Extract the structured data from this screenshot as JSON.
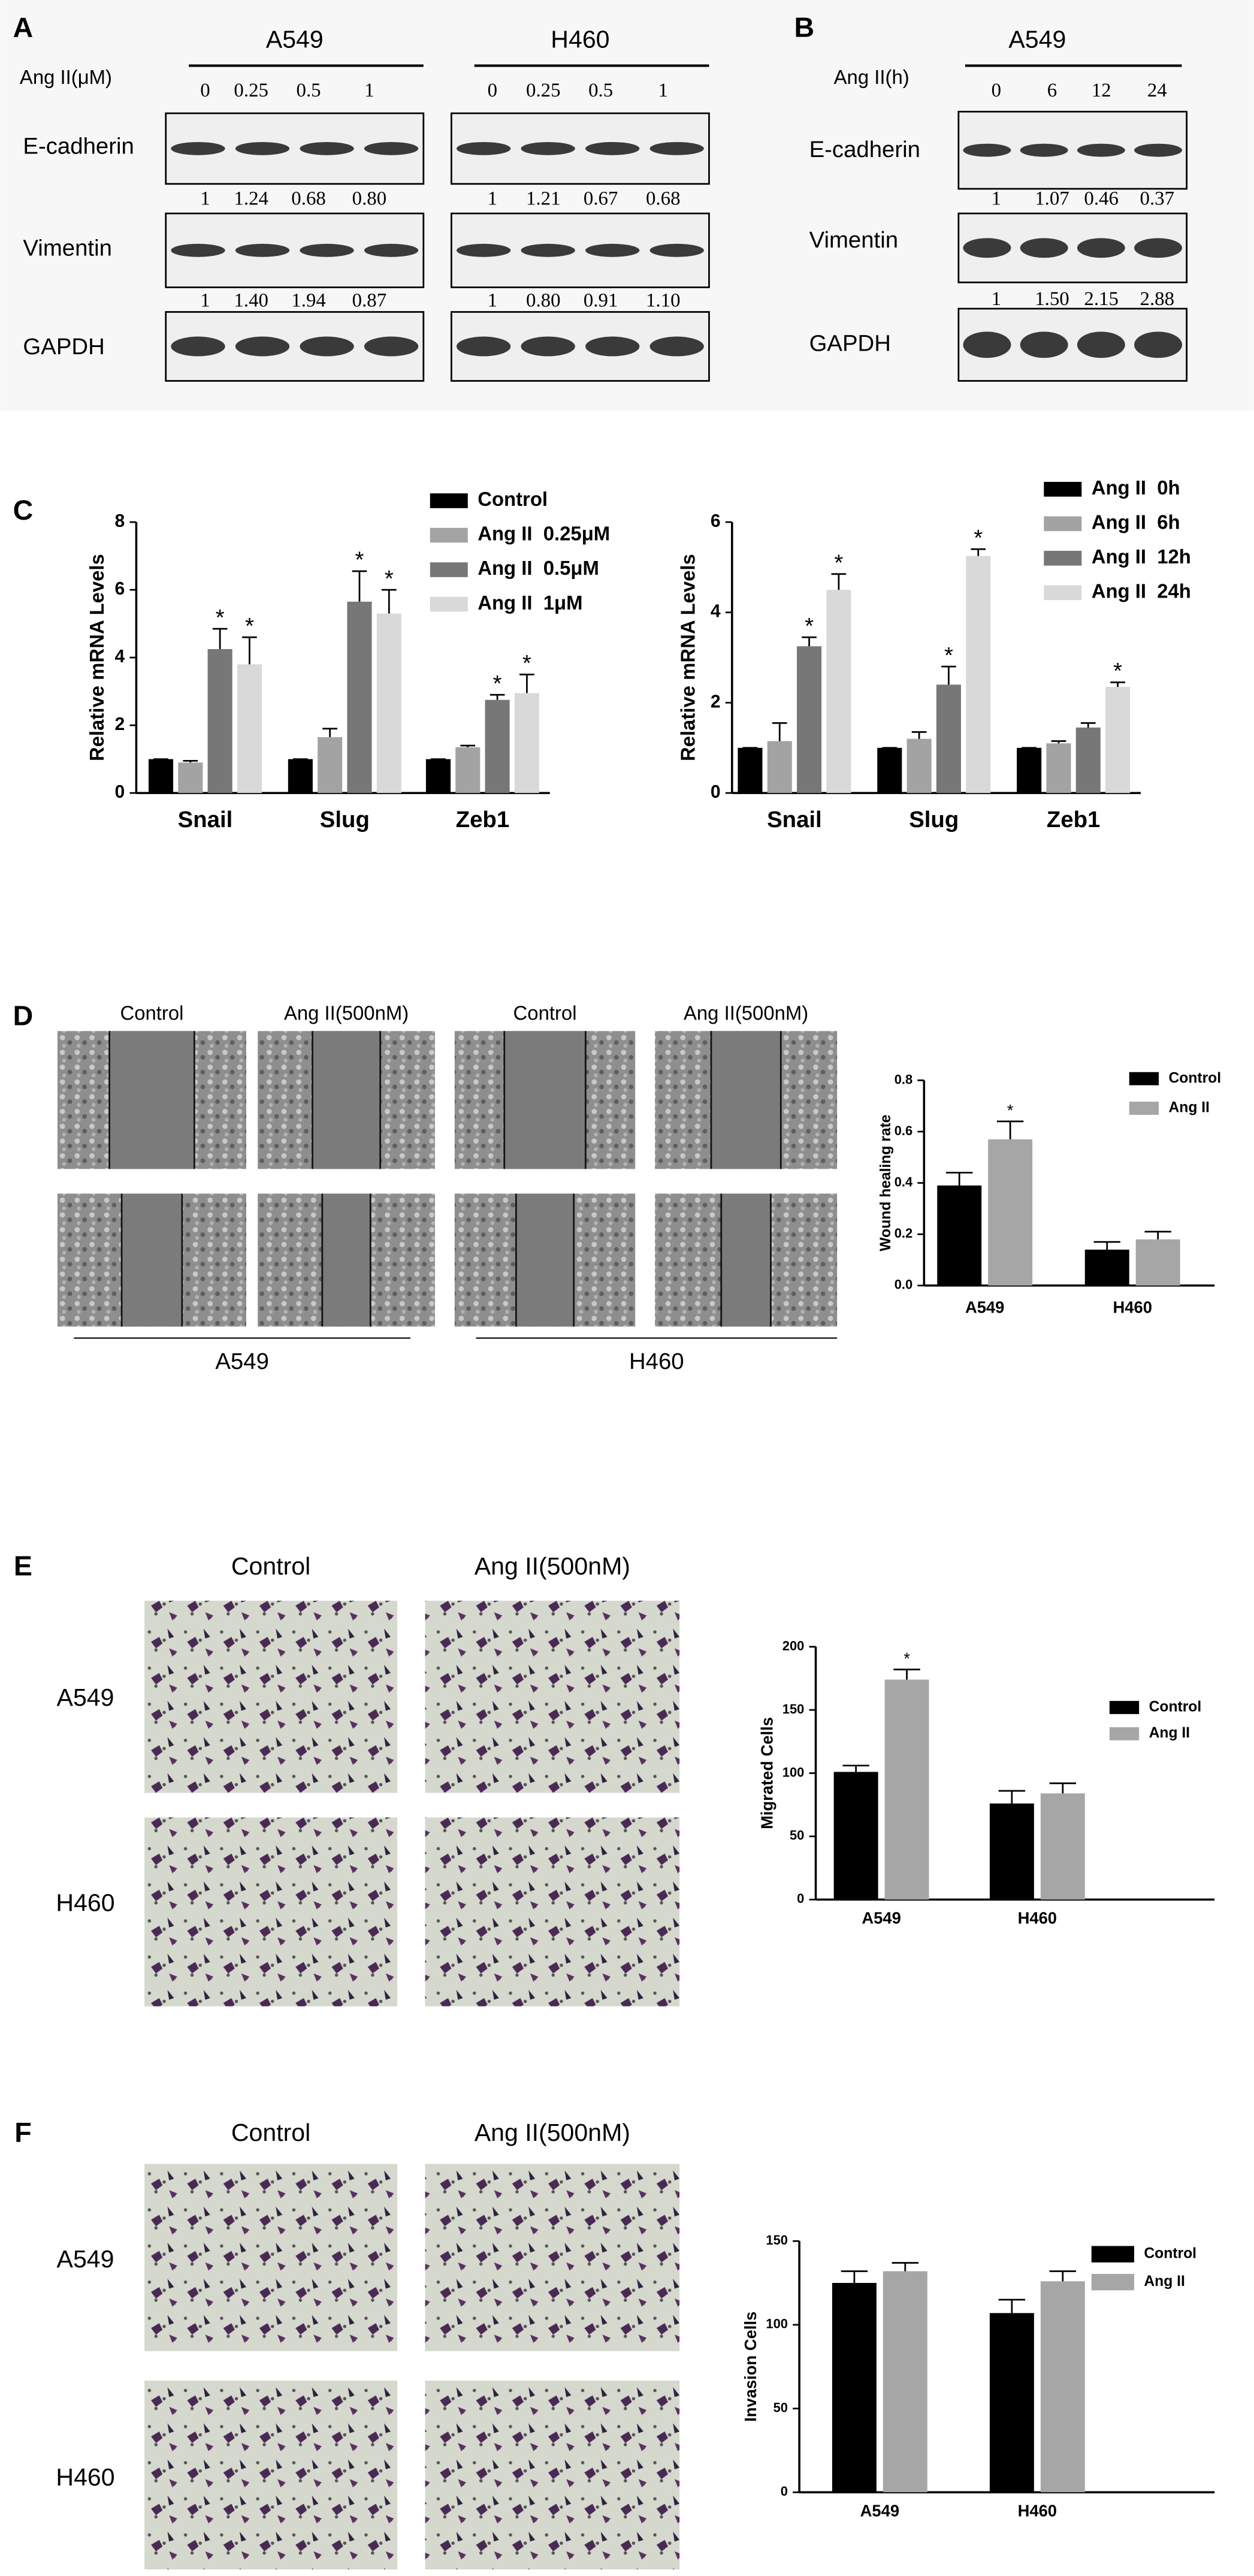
{
  "panels": {
    "A": {
      "label": "A",
      "dose_label": "Ang II(μM)",
      "rows": [
        "E-cadherin",
        "Vimentin",
        "GAPDH"
      ],
      "groups": [
        {
          "name": "A549",
          "lanes": [
            "0",
            "0.25",
            "0.5",
            "1"
          ],
          "e_cadherin": [
            "1",
            "1.24",
            "0.68",
            "0.80"
          ],
          "vimentin": [
            "1",
            "1.40",
            "1.94",
            "0.87"
          ]
        },
        {
          "name": "H460",
          "lanes": [
            "0",
            "0.25",
            "0.5",
            "1"
          ],
          "e_cadherin": [
            "1",
            "1.21",
            "0.67",
            "0.68"
          ],
          "vimentin": [
            "1",
            "0.80",
            "0.91",
            "1.10"
          ]
        }
      ]
    },
    "B": {
      "label": "B",
      "dose_label": "Ang II(h)",
      "rows": [
        "E-cadherin",
        "Vimentin",
        "GAPDH"
      ],
      "groups": [
        {
          "name": "A549",
          "lanes": [
            "0",
            "6",
            "12",
            "24"
          ],
          "e_cadherin": [
            "1",
            "1.07",
            "0.46",
            "0.37"
          ],
          "vimentin": [
            "1",
            "1.50",
            "2.15",
            "2.88"
          ]
        }
      ]
    },
    "C": {
      "label": "C"
    },
    "D": {
      "label": "D",
      "columns": [
        "Control",
        "Ang II(500nM)",
        "Control",
        "Ang II(500nM)"
      ],
      "groups": [
        "A549",
        "H460"
      ]
    },
    "E": {
      "label": "E",
      "columns": [
        "Control",
        "Ang II(500nM)"
      ],
      "rows": [
        "A549",
        "H460"
      ]
    },
    "F": {
      "label": "F",
      "columns": [
        "Control",
        "Ang II(500nM)"
      ],
      "rows": [
        "A549",
        "H460"
      ]
    }
  },
  "chart_data": [
    {
      "type": "bar",
      "y_label": "Relative mRNA Levels",
      "categories": [
        "Snail",
        "Slug",
        "Zeb1"
      ],
      "ylim": [
        0,
        8
      ],
      "yticks": [
        0,
        2,
        4,
        6,
        8
      ],
      "series": [
        {
          "name": "Control",
          "color": "#000000",
          "values": [
            1,
            1,
            1
          ],
          "errors": [
            0,
            0,
            0
          ],
          "significance": [
            null,
            null,
            null
          ]
        },
        {
          "name": "Ang II  0.25μM",
          "color": "#a3a3a3",
          "values": [
            0.9,
            1.65,
            1.35
          ],
          "errors": [
            0.05,
            0.25,
            0.05
          ],
          "significance": [
            null,
            null,
            null
          ]
        },
        {
          "name": "Ang II  0.5μM",
          "color": "#777777",
          "values": [
            4.25,
            5.65,
            2.75
          ],
          "errors": [
            0.6,
            0.9,
            0.15
          ],
          "significance": [
            "*",
            "*",
            "*"
          ]
        },
        {
          "name": "Ang II  1μM",
          "color": "#d9d9d9",
          "values": [
            3.8,
            5.3,
            2.95
          ],
          "errors": [
            0.8,
            0.7,
            0.55
          ],
          "significance": [
            "*",
            "*",
            "*"
          ]
        }
      ]
    },
    {
      "type": "bar",
      "y_label": "Relative mRNA Levels",
      "categories": [
        "Snail",
        "Slug",
        "Zeb1"
      ],
      "ylim": [
        0,
        6
      ],
      "yticks": [
        0,
        2,
        4,
        6
      ],
      "series": [
        {
          "name": "Ang II  0h",
          "color": "#000000",
          "values": [
            1,
            1,
            1
          ],
          "errors": [
            0,
            0,
            0
          ],
          "significance": [
            null,
            null,
            null
          ]
        },
        {
          "name": "Ang II  6h",
          "color": "#a3a3a3",
          "values": [
            1.15,
            1.2,
            1.1
          ],
          "errors": [
            0.4,
            0.15,
            0.05
          ],
          "significance": [
            null,
            null,
            null
          ]
        },
        {
          "name": "Ang II  12h",
          "color": "#777777",
          "values": [
            3.25,
            2.4,
            1.45
          ],
          "errors": [
            0.2,
            0.4,
            0.1
          ],
          "significance": [
            "*",
            "*",
            null
          ]
        },
        {
          "name": "Ang II  24h",
          "color": "#d9d9d9",
          "values": [
            4.5,
            5.25,
            2.35
          ],
          "errors": [
            0.35,
            0.15,
            0.1
          ],
          "significance": [
            "*",
            "*",
            "*"
          ]
        }
      ]
    },
    {
      "type": "bar",
      "y_label": "Wound healing rate",
      "categories": [
        "A549",
        "H460"
      ],
      "ylim": [
        0,
        0.8
      ],
      "yticks": [
        {
          "value": 0,
          "label": "0.0"
        },
        0.2,
        0.4,
        0.6,
        0.8
      ],
      "series": [
        {
          "name": "Control",
          "color": "#000000",
          "values": [
            0.39,
            0.14
          ],
          "errors": [
            0.05,
            0.03
          ],
          "significance": [
            null,
            null
          ]
        },
        {
          "name": "Ang II",
          "color": "#a6a6a6",
          "values": [
            0.57,
            0.18
          ],
          "errors": [
            0.07,
            0.03
          ],
          "significance": [
            "*",
            null
          ]
        }
      ]
    },
    {
      "type": "bar",
      "y_label": "Migrated Cells",
      "categories": [
        "A549",
        "H460"
      ],
      "ylim": [
        0,
        200
      ],
      "yticks": [
        0,
        50,
        100,
        150,
        200
      ],
      "series": [
        {
          "name": "Control",
          "color": "#000000",
          "values": [
            101,
            76
          ],
          "errors": [
            5,
            10
          ],
          "significance": [
            null,
            null
          ]
        },
        {
          "name": "Ang II",
          "color": "#a6a6a6",
          "values": [
            174,
            84
          ],
          "errors": [
            8,
            8
          ],
          "significance": [
            "*",
            null
          ]
        }
      ]
    },
    {
      "type": "bar",
      "y_label": "Invasion Cells",
      "categories": [
        "A549",
        "H460"
      ],
      "ylim": [
        0,
        150
      ],
      "yticks": [
        0,
        50,
        100,
        150
      ],
      "series": [
        {
          "name": "Control",
          "color": "#000000",
          "values": [
            125,
            107
          ],
          "errors": [
            7,
            8
          ],
          "significance": [
            null,
            null
          ]
        },
        {
          "name": "Ang II",
          "color": "#a6a6a6",
          "values": [
            132,
            126
          ],
          "errors": [
            5,
            6
          ],
          "significance": [
            null,
            null
          ]
        }
      ]
    }
  ]
}
